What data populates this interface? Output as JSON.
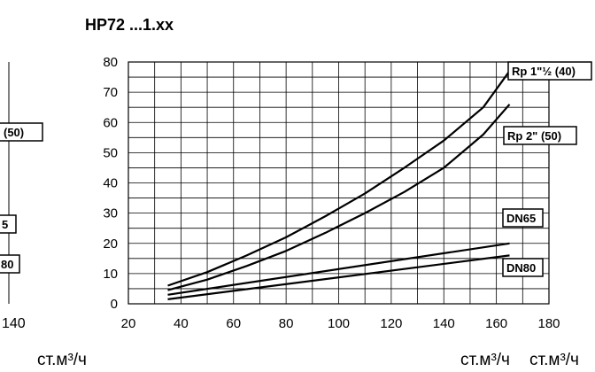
{
  "left_fragment": {
    "labels": [
      "(50)",
      "5",
      "80"
    ],
    "tick": "140",
    "unit": "ст.м³/ч"
  },
  "chart_data": {
    "type": "line",
    "title": "HP72 ...1.xx",
    "xlabel": "ст.м³/ч",
    "xlabel_overflow": "ст.м³/ч",
    "ylabel": "",
    "xlim": [
      20,
      180
    ],
    "ylim": [
      0,
      80
    ],
    "xticks": [
      20,
      40,
      60,
      80,
      100,
      120,
      140,
      160,
      180
    ],
    "yticks": [
      0,
      10,
      20,
      30,
      40,
      50,
      60,
      70,
      80
    ],
    "grid": true,
    "series": [
      {
        "name": "Rp 1\"½ (40)",
        "x": [
          35,
          50,
          65,
          80,
          95,
          110,
          125,
          140,
          155,
          165
        ],
        "y": [
          6,
          10.5,
          16,
          22,
          29,
          36.5,
          45,
          54,
          65,
          77
        ]
      },
      {
        "name": "Rp 2\" (50)",
        "x": [
          35,
          50,
          65,
          80,
          95,
          110,
          125,
          140,
          155,
          165
        ],
        "y": [
          4.5,
          8,
          12.5,
          17.5,
          23.5,
          30,
          37,
          45,
          56,
          66
        ]
      },
      {
        "name": "DN65",
        "x": [
          35,
          165
        ],
        "y": [
          3,
          20
        ]
      },
      {
        "name": "DN80",
        "x": [
          35,
          165
        ],
        "y": [
          1.5,
          16
        ]
      }
    ]
  }
}
